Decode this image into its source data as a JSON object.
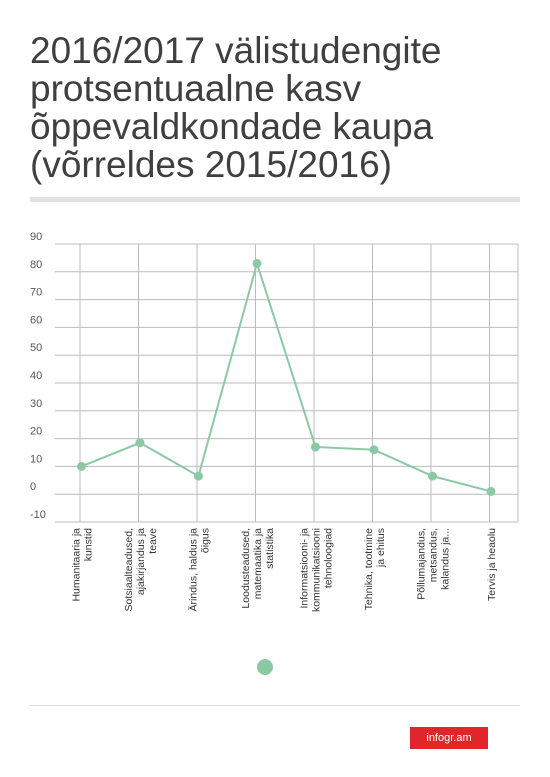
{
  "title": "2016/2017  välistudengite protsentuaalne kasv õppevaldkondade kaupa (võrreldes 2015/2016)",
  "brand": "infogr.am",
  "colors": {
    "line": "#8cc8a4",
    "grid": "#bcbcbc",
    "legend_dot": "#8cc8a4",
    "brand": "#e0262b"
  },
  "chart_data": {
    "type": "line",
    "ylim": [
      -10,
      90
    ],
    "y_ticks": [
      90,
      80,
      70,
      60,
      50,
      40,
      30,
      20,
      10,
      0,
      -10
    ],
    "grid": true,
    "legend": "bottom",
    "categories": [
      [
        "Humanitaaria ja",
        "kunstid"
      ],
      [
        "Sotsiaalteadused,",
        "ajakirjandus ja",
        "teave"
      ],
      [
        "Ärindus, haldus ja",
        "õigus"
      ],
      [
        "Loodusteadused,",
        "matemaatika ja",
        "statistika"
      ],
      [
        "Informatsiooni- ja",
        "kommunikatsiooni",
        "tehnoloogiad"
      ],
      [
        "Tehnika, tootmine",
        "ja ehitus"
      ],
      [
        "Põllumajandus,",
        "metsandus,",
        "kalandus ja..."
      ],
      [
        "Tervis ja heaolu"
      ]
    ],
    "series": [
      {
        "values": [
          10,
          18.5,
          6.5,
          83,
          17,
          16,
          6.5,
          1
        ]
      }
    ]
  }
}
